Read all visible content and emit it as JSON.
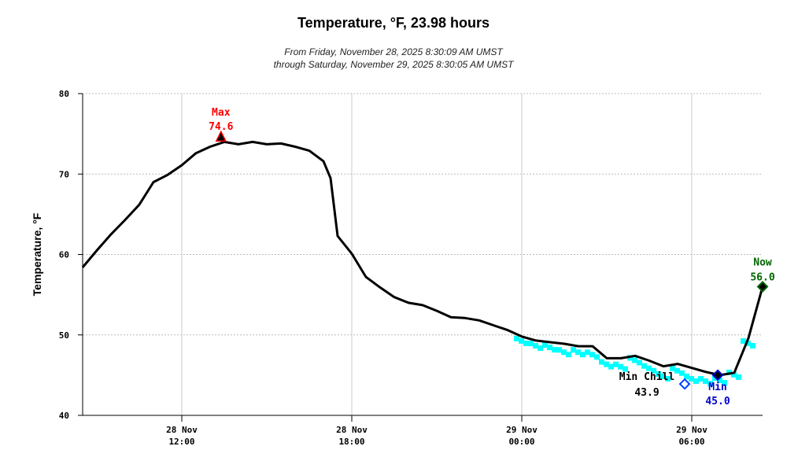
{
  "chart_data": {
    "type": "line",
    "title": "Temperature, °F, 23.98 hours",
    "subtitle": [
      "From Friday, November 28, 2025 8:30:09 AM UMST",
      "through Saturday, November 29, 2025 8:30:05 AM UMST"
    ],
    "ylabel": "Temperature, °F",
    "xlabel": "",
    "ylim": [
      40,
      80
    ],
    "xlim": [
      "2025-11-28T08:30",
      "2025-11-29T08:30"
    ],
    "yticks": [
      40,
      50,
      60,
      70,
      80
    ],
    "xticks": [
      {
        "t": "2025-11-28T12:00",
        "l1": "28 Nov",
        "l2": "12:00"
      },
      {
        "t": "2025-11-28T18:00",
        "l1": "28 Nov",
        "l2": "18:00"
      },
      {
        "t": "2025-11-29T00:00",
        "l1": "29 Nov",
        "l2": "00:00"
      },
      {
        "t": "2025-11-29T06:00",
        "l1": "29 Nov",
        "l2": "06:00"
      }
    ],
    "grid": true,
    "colors": {
      "temperature": "#000000",
      "chill": "#00ffff",
      "max": "#ff0000",
      "min": "#0000cc",
      "now": "#006600"
    },
    "series": [
      {
        "key": "temperature",
        "x": [
          "2025-11-28T08:30",
          "2025-11-28T09:00",
          "2025-11-28T09:30",
          "2025-11-28T10:00",
          "2025-11-28T10:30",
          "2025-11-28T11:00",
          "2025-11-28T11:30",
          "2025-11-28T12:00",
          "2025-11-28T12:30",
          "2025-11-28T13:00",
          "2025-11-28T13:30",
          "2025-11-28T14:00",
          "2025-11-28T14:30",
          "2025-11-28T15:00",
          "2025-11-28T15:30",
          "2025-11-28T16:00",
          "2025-11-28T16:30",
          "2025-11-28T17:00",
          "2025-11-28T17:15",
          "2025-11-28T17:30",
          "2025-11-28T18:00",
          "2025-11-28T18:30",
          "2025-11-28T19:00",
          "2025-11-28T19:30",
          "2025-11-28T20:00",
          "2025-11-28T20:30",
          "2025-11-28T21:00",
          "2025-11-28T21:30",
          "2025-11-28T22:00",
          "2025-11-28T22:30",
          "2025-11-28T23:00",
          "2025-11-28T23:30",
          "2025-11-29T00:00",
          "2025-11-29T00:30",
          "2025-11-29T01:00",
          "2025-11-29T01:30",
          "2025-11-29T02:00",
          "2025-11-29T02:30",
          "2025-11-29T03:00",
          "2025-11-29T03:30",
          "2025-11-29T04:00",
          "2025-11-29T04:30",
          "2025-11-29T05:00",
          "2025-11-29T05:30",
          "2025-11-29T06:00",
          "2025-11-29T06:30",
          "2025-11-29T07:00",
          "2025-11-29T07:30",
          "2025-11-29T08:00",
          "2025-11-29T08:30"
        ],
        "values": [
          58.4,
          60.5,
          62.5,
          64.3,
          66.2,
          69.0,
          69.9,
          71.1,
          72.6,
          73.4,
          74.0,
          73.7,
          74.0,
          73.7,
          73.8,
          73.4,
          72.9,
          71.6,
          69.5,
          62.3,
          60.1,
          57.2,
          55.9,
          54.7,
          54.0,
          53.7,
          53.0,
          52.2,
          52.1,
          51.8,
          51.2,
          50.6,
          49.8,
          49.3,
          49.1,
          48.9,
          48.6,
          48.6,
          47.1,
          47.1,
          47.4,
          46.8,
          46.1,
          46.4,
          45.9,
          45.4,
          45.0,
          45.3,
          49.6,
          56.0
        ]
      },
      {
        "key": "chill",
        "x": [
          "2025-11-29T00:00",
          "2025-11-29T00:30",
          "2025-11-29T01:00",
          "2025-11-29T01:30",
          "2025-11-29T02:00",
          "2025-11-29T02:30",
          "2025-11-29T03:00",
          "2025-11-29T03:30",
          "2025-11-29T04:00",
          "2025-11-29T04:30",
          "2025-11-29T05:00",
          "2025-11-29T05:30",
          "2025-11-29T06:00",
          "2025-11-29T06:30",
          "2025-11-29T07:00",
          "2025-11-29T07:30",
          "2025-11-29T08:00"
        ],
        "values": [
          49.2,
          48.6,
          48.4,
          47.8,
          47.8,
          47.5,
          46.3,
          46.0,
          46.8,
          45.8,
          44.8,
          45.5,
          44.5,
          44.2,
          44.3,
          45.0,
          48.9
        ]
      }
    ],
    "annotations": [
      {
        "key": "max",
        "label": "Max",
        "value": "74.6",
        "t": "2025-11-28T13:23",
        "y": 74.6
      },
      {
        "key": "minchill",
        "label": "Min Chill",
        "value": "43.9",
        "t": "2025-11-29T05:45",
        "y": 43.9
      },
      {
        "key": "min",
        "label": "Min",
        "value": "45.0",
        "t": "2025-11-29T06:55",
        "y": 45.0
      },
      {
        "key": "now",
        "label": "Now",
        "value": "56.0",
        "t": "2025-11-29T08:30",
        "y": 56.0
      }
    ]
  }
}
